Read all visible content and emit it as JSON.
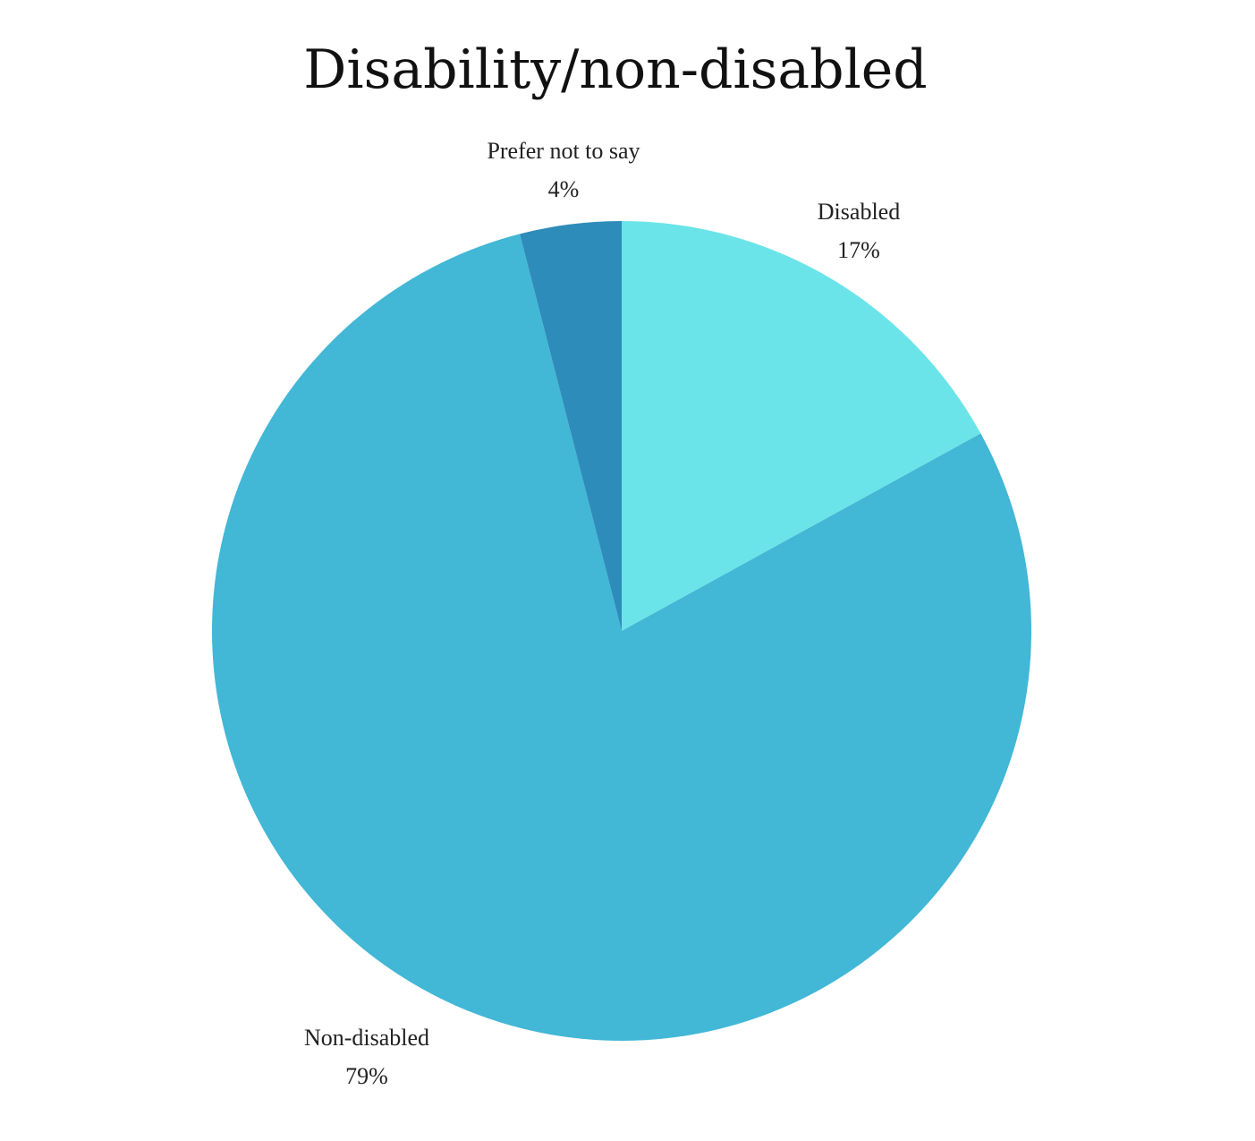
{
  "chart_data": {
    "type": "pie",
    "title": "Disability/non-disabled",
    "start_angle_deg": 0,
    "direction": "clockwise",
    "slices": [
      {
        "label": "Disabled",
        "value": 17,
        "display": "17%",
        "color": "#6ae4e8"
      },
      {
        "label": "Non-disabled",
        "value": 79,
        "display": "79%",
        "color": "#42b7d6"
      },
      {
        "label": "Prefer not to say",
        "value": 4,
        "display": "4%",
        "color": "#2e8cba"
      }
    ]
  }
}
